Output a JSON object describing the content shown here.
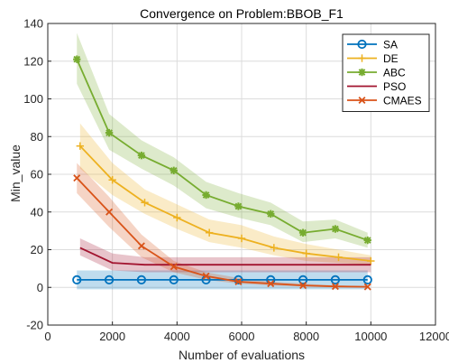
{
  "chart_data": {
    "type": "line",
    "title": "Convergence on Problem:BBOB_F1",
    "xlabel": "Number of evaluations",
    "ylabel": "Min_value",
    "xlim": [
      0,
      12000
    ],
    "ylim": [
      -20,
      140
    ],
    "xticks": [
      "0",
      "2000",
      "4000",
      "6000",
      "8000",
      "10000",
      "12000"
    ],
    "yticks": [
      "-20",
      "0",
      "20",
      "40",
      "60",
      "80",
      "100",
      "120",
      "140"
    ],
    "grid": true,
    "legend_position": "top-right",
    "series": [
      {
        "name": "SA",
        "color": "#0072BD",
        "marker": "circle",
        "x": [
          900,
          1900,
          2900,
          3900,
          4900,
          5900,
          6900,
          7900,
          8900,
          9900
        ],
        "y": [
          4,
          4,
          4,
          4,
          4,
          4,
          4,
          4,
          4,
          4
        ],
        "lower": [
          -1,
          -1,
          -1,
          -1,
          -1,
          -1,
          -1,
          -1,
          -1,
          -1
        ],
        "upper": [
          9,
          9,
          9,
          9,
          9,
          9,
          9,
          9,
          9,
          9
        ]
      },
      {
        "name": "DE",
        "color": "#EDB120",
        "marker": "plus",
        "x": [
          1000,
          2000,
          3000,
          4000,
          5000,
          6000,
          7000,
          8000,
          9000,
          10000
        ],
        "y": [
          75,
          57,
          45,
          37,
          29,
          26,
          21,
          18,
          16,
          14
        ],
        "lower": [
          63,
          49,
          39,
          31,
          24,
          21,
          17,
          14,
          13,
          12
        ],
        "upper": [
          87,
          66,
          52,
          44,
          36,
          33,
          27,
          23,
          20,
          17
        ]
      },
      {
        "name": "ABC",
        "color": "#77AC30",
        "marker": "star",
        "x": [
          900,
          1900,
          2900,
          3900,
          4900,
          5900,
          6900,
          7900,
          8900,
          9900
        ],
        "y": [
          121,
          82,
          70,
          62,
          49,
          43,
          39,
          29,
          31,
          25
        ],
        "lower": [
          108,
          73,
          63,
          54,
          42,
          37,
          33,
          24,
          26,
          21
        ],
        "upper": [
          135,
          92,
          78,
          69,
          56,
          50,
          45,
          35,
          36,
          29
        ]
      },
      {
        "name": "PSO",
        "color": "#A2142F",
        "marker": "none",
        "x": [
          1000,
          2000,
          3000,
          4000,
          5000,
          6000,
          7000,
          8000,
          9000,
          10000
        ],
        "y": [
          21,
          13,
          12,
          12,
          12,
          12,
          12,
          12,
          12,
          12
        ],
        "lower": [
          17,
          9,
          8,
          8,
          8,
          8,
          8,
          8,
          8,
          8
        ],
        "upper": [
          26,
          18,
          16,
          16,
          16,
          16,
          16,
          16,
          16,
          16
        ]
      },
      {
        "name": "CMAES",
        "color": "#D95319",
        "marker": "x",
        "x": [
          900,
          1900,
          2900,
          3900,
          4900,
          5900,
          6900,
          7900,
          8900,
          9900
        ],
        "y": [
          58,
          40,
          22,
          11,
          6,
          3,
          2,
          1,
          0.5,
          0.3
        ],
        "lower": [
          50,
          32,
          16,
          8,
          4,
          2,
          1,
          0.5,
          0.2,
          0.1
        ],
        "upper": [
          66,
          48,
          28,
          14,
          8,
          5,
          3,
          2,
          1,
          0.6
        ]
      }
    ]
  }
}
